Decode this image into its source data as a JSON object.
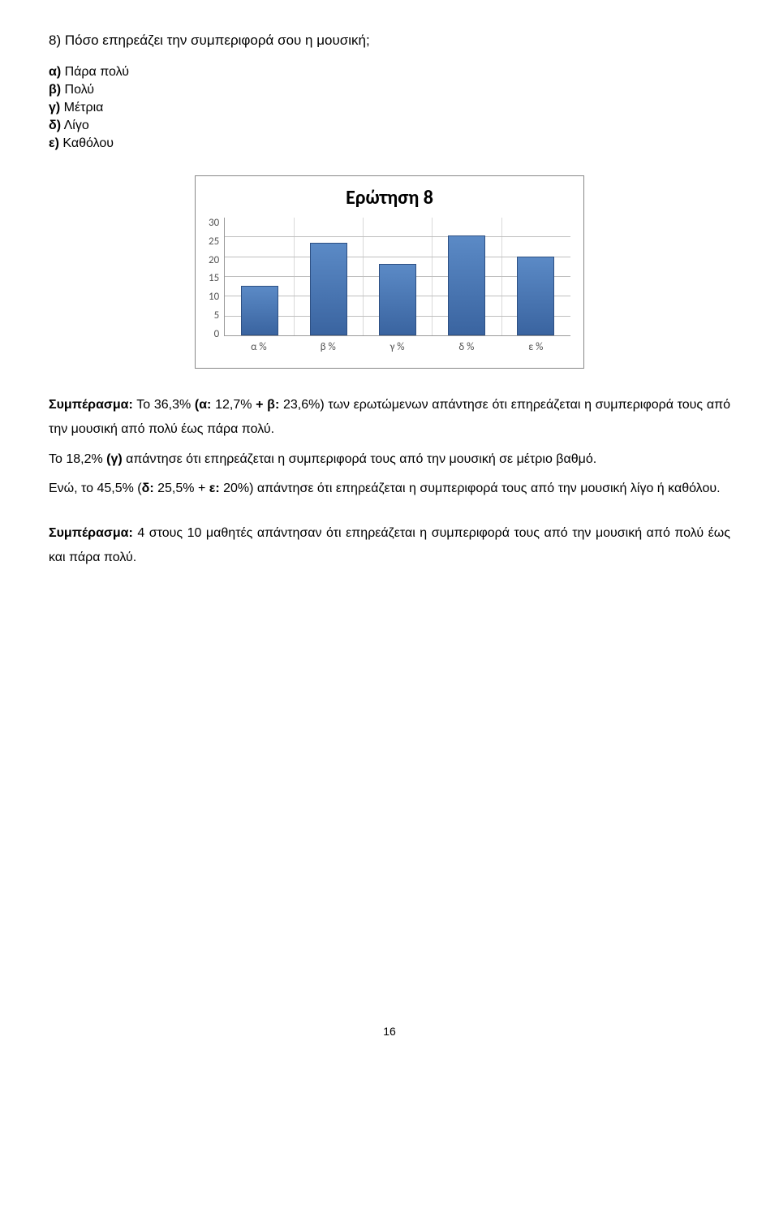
{
  "question": {
    "text": "8) Πόσο επηρεάζει την συμπεριφορά σου η μουσική;"
  },
  "options": [
    {
      "label": "α)",
      "text": " Πάρα πολύ"
    },
    {
      "label": "β)",
      "text": " Πολύ"
    },
    {
      "label": "γ)",
      "text": " Μέτρια"
    },
    {
      "label": "δ)",
      "text": " Λίγο"
    },
    {
      "label": "ε)",
      "text": " Καθόλου"
    }
  ],
  "chart": {
    "title": "Ερώτηση 8",
    "categories": [
      "α %",
      "β %",
      "γ %",
      "δ %",
      "ε %"
    ],
    "values": [
      12.7,
      23.6,
      18.2,
      25.5,
      20
    ],
    "ymax": 30,
    "ylabels": [
      "30",
      "25",
      "20",
      "15",
      "10",
      "5",
      "0"
    ],
    "bar_color_top": "#5b8ac6",
    "bar_color_bottom": "#3a64a0",
    "bar_border": "#2d4f82",
    "grid_color": "#bfbfbf",
    "tick_color": "#d9d9d9"
  },
  "analysis": {
    "s1_lead": "Συμπέρασμα:",
    "s1_a": " Το 36,3% ",
    "s1_b": "(α: ",
    "s1_c": "12,7% ",
    "s1_d": "+ β: ",
    "s1_e": "23,6%) των ερωτώμενων απάντησε ότι επηρεάζεται η συμπεριφορά τους από την μουσική από πολύ έως πάρα πολύ.",
    "s2_a": "Το 18,2% ",
    "s2_b": "(γ) ",
    "s2_c": "απάντησε ότι επηρεάζεται η συμπεριφορά τους από την μουσική σε μέτριο βαθμό.",
    "s3_a": "Ενώ, το 45,5% (",
    "s3_b": "δ: ",
    "s3_c": "25,5% + ",
    "s3_d": "ε: ",
    "s3_e": "20%) απάντησε ότι επηρεάζεται η συμπεριφορά τους από την μουσική λίγο ή καθόλου.",
    "s4_lead": "Συμπέρασμα:",
    "s4_rest": " 4 στους 10 μαθητές απάντησαν ότι επηρεάζεται η συμπεριφορά τους από την μουσική από πολύ έως και πάρα πολύ."
  },
  "page_number": "16"
}
